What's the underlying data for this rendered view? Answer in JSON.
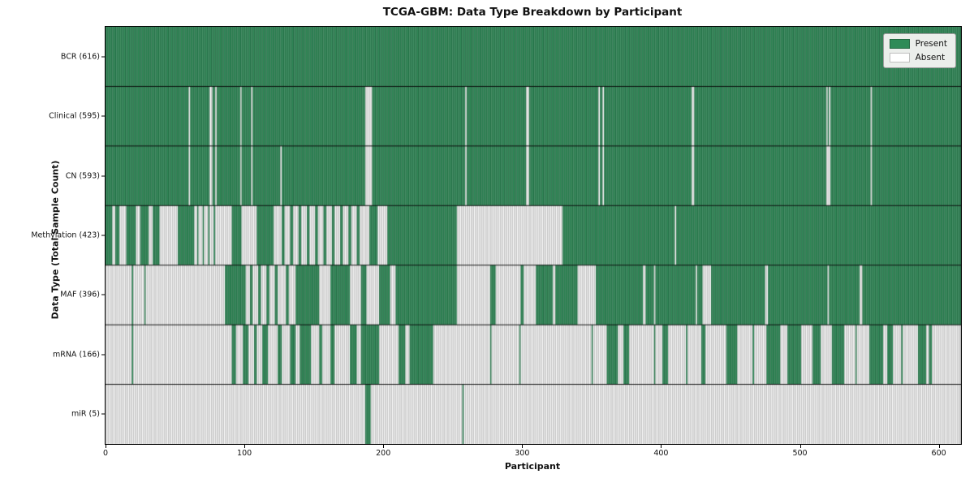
{
  "title": "TCGA-GBM: Data Type Breakdown by Participant",
  "chart_data": {
    "type": "heatmap",
    "subtype": "presence-absence-barcode",
    "xlabel": "Participant",
    "ylabel": "Data Type (Total Sample Count)",
    "n_participants": 616,
    "x_ticks": [
      0,
      100,
      200,
      300,
      400,
      500,
      600
    ],
    "legend": {
      "present_label": "Present",
      "absent_label": "Absent",
      "position": "upper right"
    },
    "colors": {
      "present": "#2e8b57",
      "absent": "#ffffff",
      "present_edge": "rgba(10,40,25,0.55)",
      "absent_edge": "rgba(125,125,125,0.85)",
      "row_divider": "#000000",
      "spine": "#000000",
      "legend_bg": "#ebeeeb"
    },
    "series": [
      {
        "label": "BCR (616)",
        "name": "BCR",
        "count": 616,
        "present_runs": [
          [
            0,
            616
          ]
        ]
      },
      {
        "label": "Clinical (595)",
        "name": "Clinical",
        "count": 595,
        "absent_positions": [
          60,
          75,
          76,
          79,
          97,
          105,
          187,
          188,
          189,
          190,
          191,
          259,
          303,
          304,
          355,
          358,
          422,
          423,
          519,
          521,
          551
        ]
      },
      {
        "label": "CN (593)",
        "name": "CN",
        "count": 593,
        "absent_positions": [
          60,
          75,
          76,
          79,
          97,
          105,
          126,
          187,
          188,
          189,
          190,
          191,
          259,
          303,
          304,
          355,
          358,
          422,
          423,
          519,
          520,
          521,
          551
        ]
      },
      {
        "label": "Methylation (423)",
        "name": "Methylation",
        "count": 423,
        "present_runs": [
          [
            0,
            5
          ],
          [
            7,
            10
          ],
          [
            15,
            22
          ],
          [
            25,
            31
          ],
          [
            34,
            39
          ],
          [
            52,
            64
          ],
          [
            66,
            67
          ],
          [
            70,
            71
          ],
          [
            74,
            75
          ],
          [
            78,
            79
          ],
          [
            91,
            98
          ],
          [
            109,
            121
          ],
          [
            127,
            129
          ],
          [
            133,
            135
          ],
          [
            139,
            141
          ],
          [
            145,
            147
          ],
          [
            151,
            153
          ],
          [
            157,
            159
          ],
          [
            163,
            165
          ],
          [
            169,
            171
          ],
          [
            175,
            177
          ],
          [
            181,
            183
          ],
          [
            190,
            196
          ],
          [
            203,
            253
          ],
          [
            329,
            410
          ],
          [
            411,
            616
          ]
        ]
      },
      {
        "label": "MAF (396)",
        "name": "MAF",
        "count": 396,
        "present_runs": [
          [
            19,
            20
          ],
          [
            28,
            29
          ],
          [
            86,
            101
          ],
          [
            104,
            106
          ],
          [
            110,
            112
          ],
          [
            116,
            118
          ],
          [
            122,
            124
          ],
          [
            130,
            132
          ],
          [
            137,
            154
          ],
          [
            162,
            176
          ],
          [
            184,
            188
          ],
          [
            197,
            205
          ],
          [
            209,
            253
          ],
          [
            277,
            281
          ],
          [
            299,
            301
          ],
          [
            310,
            322
          ],
          [
            324,
            340
          ],
          [
            353,
            387
          ],
          [
            389,
            395
          ],
          [
            396,
            425
          ],
          [
            426,
            430
          ],
          [
            436,
            475
          ],
          [
            477,
            520
          ],
          [
            521,
            543
          ],
          [
            545,
            616
          ]
        ]
      },
      {
        "label": "mRNA (166)",
        "name": "mRNA",
        "count": 166,
        "present_runs": [
          [
            19,
            20
          ],
          [
            91,
            94
          ],
          [
            99,
            103
          ],
          [
            107,
            109
          ],
          [
            113,
            117
          ],
          [
            124,
            127
          ],
          [
            133,
            137
          ],
          [
            140,
            148
          ],
          [
            154,
            156
          ],
          [
            162,
            165
          ],
          [
            176,
            181
          ],
          [
            184,
            197
          ],
          [
            211,
            216
          ],
          [
            219,
            236
          ],
          [
            277,
            278
          ],
          [
            298,
            299
          ],
          [
            350,
            351
          ],
          [
            361,
            369
          ],
          [
            373,
            377
          ],
          [
            395,
            396
          ],
          [
            401,
            405
          ],
          [
            418,
            419
          ],
          [
            429,
            432
          ],
          [
            447,
            455
          ],
          [
            466,
            467
          ],
          [
            476,
            486
          ],
          [
            491,
            501
          ],
          [
            509,
            515
          ],
          [
            523,
            532
          ],
          [
            540,
            541
          ],
          [
            550,
            560
          ],
          [
            563,
            567
          ],
          [
            573,
            574
          ],
          [
            585,
            591
          ],
          [
            593,
            595
          ]
        ]
      },
      {
        "label": "miR (5)",
        "name": "miR",
        "count": 5,
        "present_runs": [
          [
            187,
            191
          ],
          [
            257,
            258
          ]
        ]
      }
    ]
  }
}
